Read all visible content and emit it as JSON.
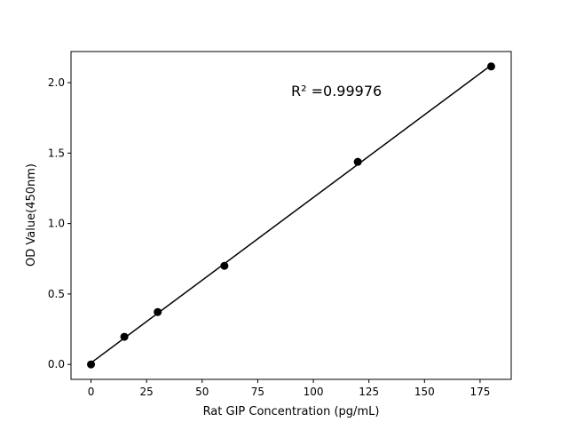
{
  "chart_data": {
    "type": "scatter",
    "title": "",
    "xlabel": "Rat GIP Concentration (pg/mL)",
    "ylabel": "OD Value(450nm)",
    "xlim": [
      -9,
      189
    ],
    "ylim": [
      -0.106,
      2.221
    ],
    "xticks": [
      0,
      25,
      50,
      75,
      100,
      125,
      150,
      175
    ],
    "yticks": [
      0.0,
      0.5,
      1.0,
      1.5,
      2.0
    ],
    "xtick_labels": [
      "0",
      "25",
      "50",
      "75",
      "100",
      "125",
      "150",
      "175"
    ],
    "ytick_labels": [
      "0.0",
      "0.5",
      "1.0",
      "1.5",
      "2.0"
    ],
    "grid": false,
    "series": [
      {
        "x": [
          0,
          15,
          30,
          60,
          120,
          180
        ],
        "y": [
          0.0,
          0.196,
          0.372,
          0.7,
          1.438,
          2.115
        ],
        "marker": "circle",
        "color": "#000000",
        "fit_line": "linear"
      }
    ],
    "annotation": "R² =0.99976"
  }
}
